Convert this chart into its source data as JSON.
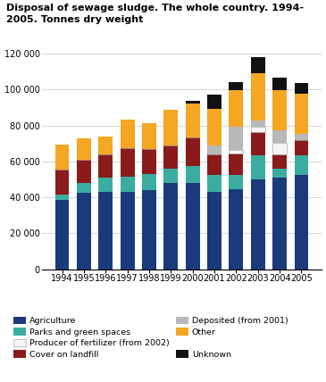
{
  "title_line1": "Disposal of sewage sludge. The whole country. 1994-",
  "title_line2": "2005. Tonnes dry weight",
  "years": [
    1994,
    1995,
    1996,
    1997,
    1998,
    1999,
    2000,
    2001,
    2002,
    2003,
    2004,
    2005
  ],
  "categories": [
    "Agriculture",
    "Parks and green spaces",
    "Cover on landfill",
    "Producer of fertilizer (from 2002)",
    "Deposited (from 2001)",
    "Other",
    "Unknown"
  ],
  "colors": [
    "#1a3a7c",
    "#3aada0",
    "#8b1a1a",
    "#f5f5f5",
    "#b8b8b8",
    "#f5a623",
    "#111111"
  ],
  "edge_colors": [
    "none",
    "none",
    "none",
    "#aaaaaa",
    "none",
    "none",
    "none"
  ],
  "data": {
    "Agriculture": [
      38500,
      42500,
      43000,
      43000,
      44000,
      48000,
      48000,
      43000,
      44500,
      50000,
      51000,
      52500
    ],
    "Parks and green spaces": [
      3000,
      5500,
      8000,
      8500,
      9000,
      8000,
      9500,
      9500,
      8000,
      13500,
      5000,
      11000
    ],
    "Cover on landfill": [
      14000,
      13000,
      13000,
      16000,
      14000,
      13000,
      16000,
      11500,
      12000,
      13000,
      8000,
      8500
    ],
    "Producer of fertilizer (from 2002)": [
      0,
      0,
      0,
      0,
      0,
      0,
      0,
      0,
      2000,
      3000,
      6500,
      0
    ],
    "Deposited (from 2001)": [
      0,
      0,
      0,
      0,
      0,
      0,
      0,
      5000,
      13000,
      3000,
      7000,
      3500
    ],
    "Other": [
      14000,
      12000,
      10000,
      15500,
      14500,
      19500,
      18500,
      20000,
      20000,
      26500,
      22000,
      22000
    ],
    "Unknown": [
      0,
      0,
      0,
      0,
      0,
      0,
      1500,
      8000,
      4500,
      9000,
      7000,
      6000
    ]
  },
  "ylim": [
    0,
    120000
  ],
  "yticks": [
    0,
    20000,
    40000,
    60000,
    80000,
    100000,
    120000
  ],
  "ytick_labels": [
    "0",
    "20 000",
    "40 000",
    "60 000",
    "80 000",
    "100 000",
    "120 000"
  ],
  "bg_color": "#ffffff",
  "grid_color": "#d0d0d0",
  "bar_width": 0.65,
  "legend_rows": [
    [
      "Agriculture",
      "Parks and green spaces"
    ],
    [
      "Producer of fertilizer (from 2002)",
      "Cover on landfill"
    ],
    [
      "Deposited (from 2001)",
      "Other",
      "Unknown"
    ]
  ]
}
